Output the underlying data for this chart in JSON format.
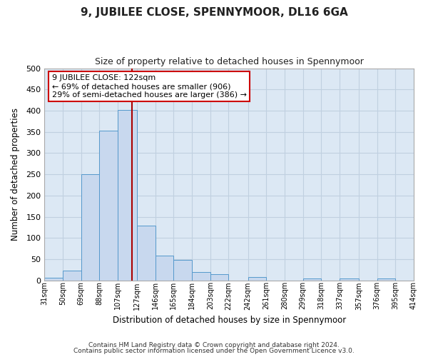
{
  "title": "9, JUBILEE CLOSE, SPENNYMOOR, DL16 6GA",
  "subtitle": "Size of property relative to detached houses in Spennymoor",
  "xlabel": "Distribution of detached houses by size in Spennymoor",
  "ylabel": "Number of detached properties",
  "bin_edges": [
    31,
    50,
    69,
    88,
    107,
    127,
    146,
    165,
    184,
    203,
    222,
    242,
    261,
    280,
    299,
    318,
    337,
    357,
    376,
    395,
    414
  ],
  "bin_counts": [
    6,
    24,
    250,
    353,
    401,
    130,
    59,
    49,
    19,
    15,
    0,
    8,
    0,
    0,
    5,
    0,
    5,
    0,
    5
  ],
  "property_size": 122,
  "bar_color": "#c8d8ee",
  "bar_edge_color": "#5599cc",
  "vline_color": "#aa0000",
  "grid_color": "#c0d0e0",
  "plot_bg_color": "#dce8f4",
  "fig_bg_color": "#ffffff",
  "annotation_text": "9 JUBILEE CLOSE: 122sqm\n← 69% of detached houses are smaller (906)\n29% of semi-detached houses are larger (386) →",
  "annotation_box_color": "#ffffff",
  "annotation_box_edge": "#cc0000",
  "ylim": [
    0,
    500
  ],
  "tick_labels": [
    "31sqm",
    "50sqm",
    "69sqm",
    "88sqm",
    "107sqm",
    "127sqm",
    "146sqm",
    "165sqm",
    "184sqm",
    "203sqm",
    "222sqm",
    "242sqm",
    "261sqm",
    "280sqm",
    "299sqm",
    "318sqm",
    "337sqm",
    "357sqm",
    "376sqm",
    "395sqm",
    "414sqm"
  ],
  "footnote1": "Contains HM Land Registry data © Crown copyright and database right 2024.",
  "footnote2": "Contains public sector information licensed under the Open Government Licence v3.0."
}
